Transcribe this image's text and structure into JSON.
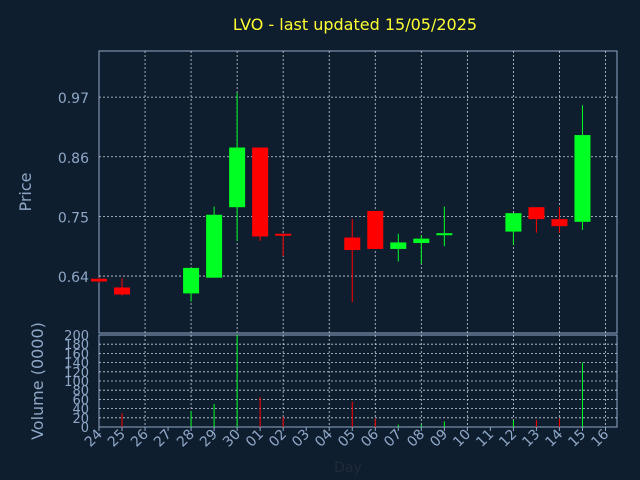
{
  "chart_data": {
    "type": "candlestick",
    "title": "LVO - last updated 15/05/2025",
    "ylabel": "Price",
    "volume_ylabel": "Volume (0000)",
    "xlabel": "Day",
    "price_ticks": [
      "0.64",
      "0.75",
      "0.86",
      "0.97"
    ],
    "price_tick_values": [
      0.64,
      0.75,
      0.86,
      0.97
    ],
    "price_ylim": [
      0.535,
      1.055
    ],
    "volume_ticks": [
      "0",
      "20",
      "40",
      "60",
      "80",
      "100",
      "120",
      "140",
      "160",
      "180",
      "200"
    ],
    "volume_ylim": [
      0,
      200
    ],
    "x_tick_labels": [
      "24",
      "25",
      "26",
      "27",
      "28",
      "29",
      "30",
      "01",
      "02",
      "03",
      "04",
      "05",
      "06",
      "07",
      "08",
      "09",
      "10",
      "11",
      "12",
      "13",
      "14",
      "15",
      "16"
    ],
    "candles": [
      {
        "day": "24",
        "open": 0.635,
        "close": 0.63,
        "high": 0.637,
        "low": 0.628,
        "volume": 0
      },
      {
        "day": "25",
        "open": 0.619,
        "close": 0.606,
        "high": 0.636,
        "low": 0.604,
        "volume": 30
      },
      {
        "day": "28",
        "open": 0.608,
        "close": 0.655,
        "high": 0.655,
        "low": 0.593,
        "volume": 35
      },
      {
        "day": "29",
        "open": 0.637,
        "close": 0.753,
        "high": 0.768,
        "low": 0.637,
        "volume": 50
      },
      {
        "day": "30",
        "open": 0.767,
        "close": 0.877,
        "high": 0.978,
        "low": 0.705,
        "volume": 200
      },
      {
        "day": "01",
        "open": 0.877,
        "close": 0.713,
        "high": 0.877,
        "low": 0.705,
        "volume": 65
      },
      {
        "day": "02",
        "open": 0.718,
        "close": 0.715,
        "high": 0.718,
        "low": 0.677,
        "volume": 22
      },
      {
        "day": "05",
        "open": 0.711,
        "close": 0.688,
        "high": 0.745,
        "low": 0.592,
        "volume": 55
      },
      {
        "day": "06",
        "open": 0.76,
        "close": 0.69,
        "high": 0.76,
        "low": 0.69,
        "volume": 18
      },
      {
        "day": "07",
        "open": 0.69,
        "close": 0.702,
        "high": 0.718,
        "low": 0.667,
        "volume": 5
      },
      {
        "day": "08",
        "open": 0.701,
        "close": 0.709,
        "high": 0.715,
        "low": 0.663,
        "volume": 5
      },
      {
        "day": "09",
        "open": 0.717,
        "close": 0.719,
        "high": 0.768,
        "low": 0.695,
        "volume": 12
      },
      {
        "day": "12",
        "open": 0.722,
        "close": 0.756,
        "high": 0.756,
        "low": 0.697,
        "volume": 15
      },
      {
        "day": "13",
        "open": 0.767,
        "close": 0.745,
        "high": 0.767,
        "low": 0.72,
        "volume": 15
      },
      {
        "day": "14",
        "open": 0.745,
        "close": 0.732,
        "high": 0.767,
        "low": 0.72,
        "volume": 18
      },
      {
        "day": "15",
        "open": 0.74,
        "close": 0.9,
        "high": 0.955,
        "low": 0.725,
        "volume": 140
      }
    ],
    "colors": {
      "up": "#00ff22",
      "down": "#ff0000",
      "background": "#0f1e2e",
      "title": "#ffff33",
      "axis": "#8fa8c8",
      "grid": "#c8d0d8"
    },
    "grid": true
  }
}
